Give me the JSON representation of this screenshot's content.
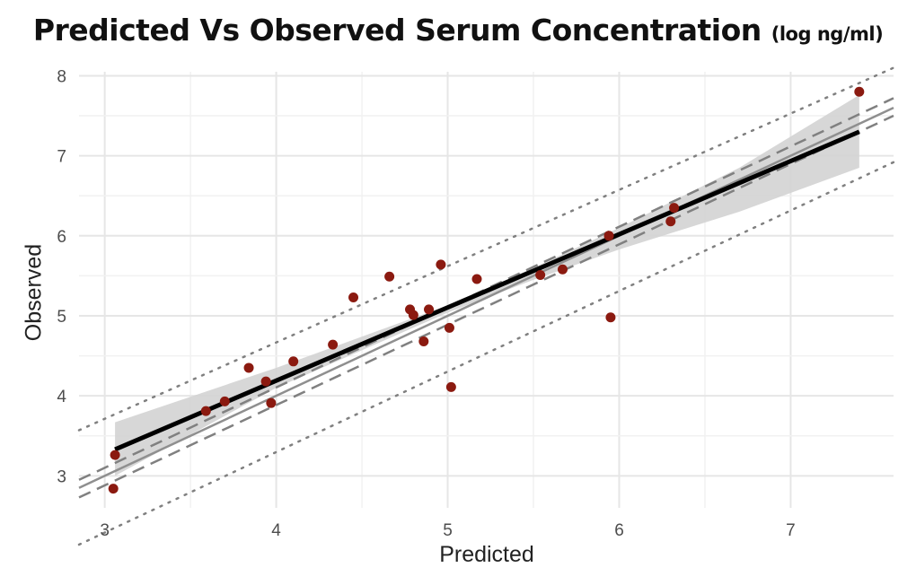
{
  "title": "Predicted Vs Observed Serum Concentration",
  "title_units": "(log ng/ml)",
  "chart_data": {
    "type": "scatter",
    "title": "Predicted Vs Observed Serum Concentration (log ng/ml)",
    "xlabel": "Predicted",
    "ylabel": "Observed",
    "xlim": [
      2.85,
      7.6
    ],
    "ylim": [
      2.6,
      8.05
    ],
    "xticks": [
      3,
      4,
      5,
      6,
      7
    ],
    "yticks": [
      3,
      4,
      5,
      6,
      7,
      8
    ],
    "grid": true,
    "point_color": "#8b1a10",
    "points": [
      {
        "x": 3.06,
        "y": 3.26
      },
      {
        "x": 3.05,
        "y": 2.84
      },
      {
        "x": 3.59,
        "y": 3.81
      },
      {
        "x": 3.7,
        "y": 3.93
      },
      {
        "x": 3.84,
        "y": 4.35
      },
      {
        "x": 3.94,
        "y": 4.18
      },
      {
        "x": 3.97,
        "y": 3.91
      },
      {
        "x": 4.1,
        "y": 4.43
      },
      {
        "x": 4.33,
        "y": 4.64
      },
      {
        "x": 4.45,
        "y": 5.23
      },
      {
        "x": 4.66,
        "y": 5.49
      },
      {
        "x": 4.78,
        "y": 5.08
      },
      {
        "x": 4.8,
        "y": 5.01
      },
      {
        "x": 4.86,
        "y": 4.68
      },
      {
        "x": 4.89,
        "y": 5.08
      },
      {
        "x": 4.96,
        "y": 5.64
      },
      {
        "x": 5.01,
        "y": 4.85
      },
      {
        "x": 5.02,
        "y": 4.11
      },
      {
        "x": 5.17,
        "y": 5.46
      },
      {
        "x": 5.54,
        "y": 5.51
      },
      {
        "x": 5.67,
        "y": 5.58
      },
      {
        "x": 5.94,
        "y": 6.0
      },
      {
        "x": 5.95,
        "y": 4.98
      },
      {
        "x": 6.3,
        "y": 6.18
      },
      {
        "x": 6.32,
        "y": 6.35
      },
      {
        "x": 7.4,
        "y": 7.8
      }
    ],
    "regression_line": {
      "x": [
        3.06,
        7.4
      ],
      "y": [
        3.33,
        7.3
      ]
    },
    "confidence_band": {
      "x": [
        3.06,
        4.0,
        5.0,
        5.5,
        6.0,
        6.7,
        7.4
      ],
      "lower": [
        3.0,
        4.1,
        5.04,
        5.45,
        5.83,
        6.3,
        6.85
      ],
      "upper": [
        3.67,
        4.35,
        5.13,
        5.6,
        6.1,
        6.85,
        7.76
      ]
    },
    "identity_line": {
      "x": [
        2.85,
        7.6
      ],
      "y": [
        2.85,
        7.6
      ]
    },
    "dashed_lines": [
      {
        "x": [
          2.85,
          7.6
        ],
        "y": [
          2.95,
          7.72
        ]
      },
      {
        "x": [
          2.85,
          7.6
        ],
        "y": [
          2.73,
          7.5
        ]
      }
    ],
    "dotted_lines": [
      {
        "x": [
          2.85,
          7.6
        ],
        "y": [
          3.57,
          8.1
        ]
      },
      {
        "x": [
          2.85,
          7.6
        ],
        "y": [
          2.14,
          6.92
        ]
      }
    ]
  }
}
